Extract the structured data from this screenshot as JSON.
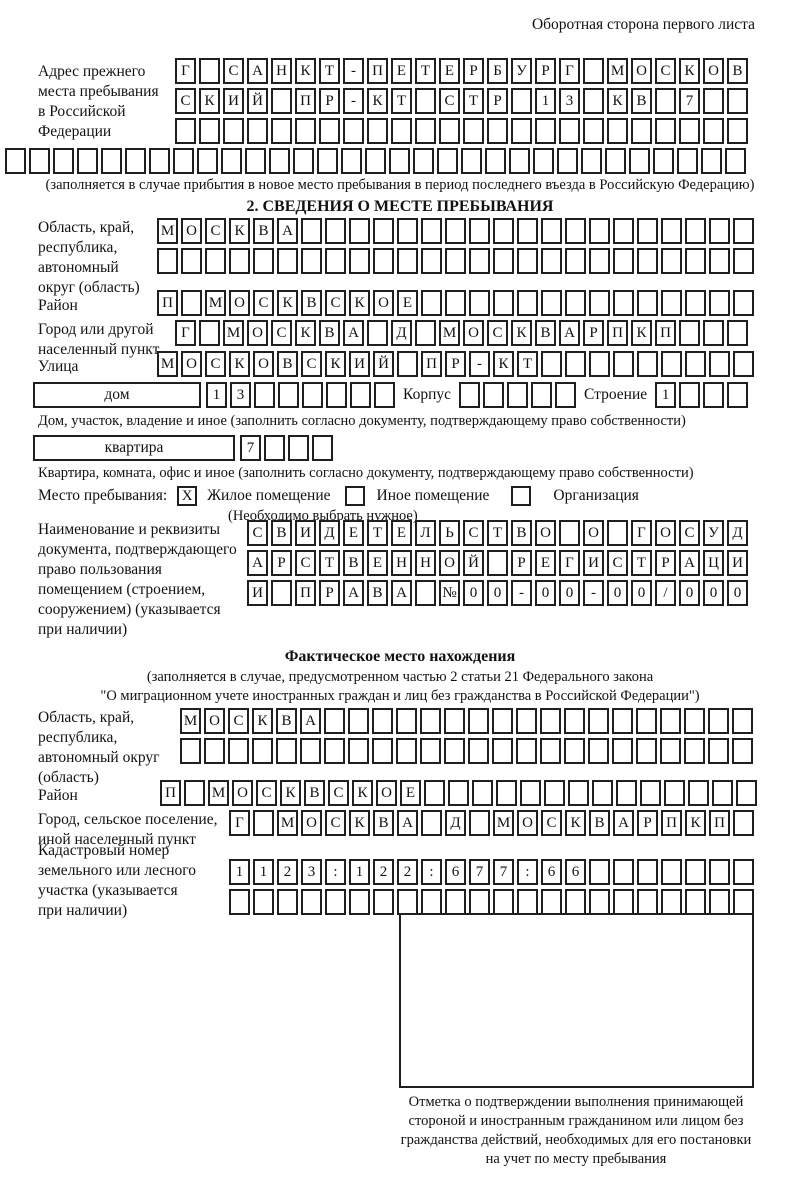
{
  "header": {
    "side_note": "Оборотная сторона первого листа"
  },
  "prev_address": {
    "label": [
      "Адрес прежнего",
      "места пребывания",
      "в Российской",
      "Федерации"
    ],
    "rows": [
      "Г_САНКТ-ПЕТЕРБУРГ_МОСКОВ",
      "СКИЙ_ПР-КТ_СТР_13_КВ_7__",
      "________________________"
    ],
    "extra_row": "_______________________________",
    "caption": "(заполняется в случае прибытия в новое место пребывания в период последнего въезда в Российскую Федерацию)"
  },
  "section2": {
    "title": "2. СВЕДЕНИЯ О МЕСТЕ ПРЕБЫВАНИЯ",
    "oblast": {
      "label": [
        "Область, край,",
        "республика,",
        "автономный",
        "округ (область)"
      ],
      "rows": [
        "МОСКВА___________________",
        "_________________________"
      ]
    },
    "raion": {
      "label": "Район",
      "row": "П_МОСКВСКОЕ______________"
    },
    "gorod": {
      "label": [
        "Город или другой",
        "населенный пункт"
      ],
      "row": "Г_МОСКВА_Д_МОСКВАРПКП___"
    },
    "ulitsa": {
      "label": "Улица",
      "row": "МОСКОВСКИЙ_ПР-КТ_________"
    },
    "dom": {
      "box_label": "дом",
      "cells": "13______",
      "korpus_label": "Корпус",
      "korpus_cells": "_____",
      "stroenie_label": "Строение",
      "stroenie_cells": "1___",
      "caption": "Дом, участок, владение и иное (заполнить согласно документу, подтверждающему право собственности)"
    },
    "kvartira": {
      "box_label": "квартира",
      "cells": "7___",
      "caption": "Квартира, комната, офис и иное (заполнить согласно документу, подтверждающему право собственности)"
    },
    "mesto": {
      "label": "Место пребывания:",
      "options": [
        {
          "label": "Жилое помещение",
          "mark": "X"
        },
        {
          "label": "Иное помещение",
          "mark": ""
        },
        {
          "label": "Организация",
          "mark": ""
        }
      ],
      "note": "(Необходимо выбрать нужное)"
    },
    "doc": {
      "label": [
        "Наименование и реквизиты",
        "документа, подтверждающего",
        "право пользования",
        "помещением (строением,",
        "сооружением) (указывается",
        "при наличии)"
      ],
      "rows": [
        "СВИДЕТЕЛЬСТВО_О_ГОСУД",
        "АРСТВЕННОЙ_РЕГИСТРАЦИ",
        "И_ПРАВА_№00-00-00/000"
      ]
    }
  },
  "section3": {
    "title": "Фактическое место нахождения",
    "captions": [
      "(заполняется в случае, предусмотренном частью 2 статьи 21 Федерального закона",
      "\"О миграционном учете иностранных граждан и лиц без гражданства в Российской Федерации\")"
    ],
    "oblast": {
      "label": [
        "Область, край,",
        "республика,",
        "автономный округ",
        "(область)"
      ],
      "rows": [
        "МОСКВА__________________",
        "________________________"
      ]
    },
    "raion": {
      "label": "Район",
      "row": "П_МОСКВСКОЕ______________"
    },
    "gorod": {
      "label": [
        "Город, сельское поселение,",
        "иной населенный пункт"
      ],
      "row": "Г_МОСКВА_Д_МОСКВАРПКП_"
    },
    "kadastr": {
      "label": [
        "Кадастровый номер",
        "земельного или лесного",
        "участка (указывается",
        "при наличии)"
      ],
      "rows": [
        "1123:122:677:66_______",
        "______________________"
      ]
    }
  },
  "stamp": {
    "caption": [
      "Отметка о подтверждении выполнения принимающей",
      "стороной и иностранным гражданином или лицом без",
      "гражданства действий, необходимых для его постановки",
      "на учет по месту пребывания"
    ]
  }
}
